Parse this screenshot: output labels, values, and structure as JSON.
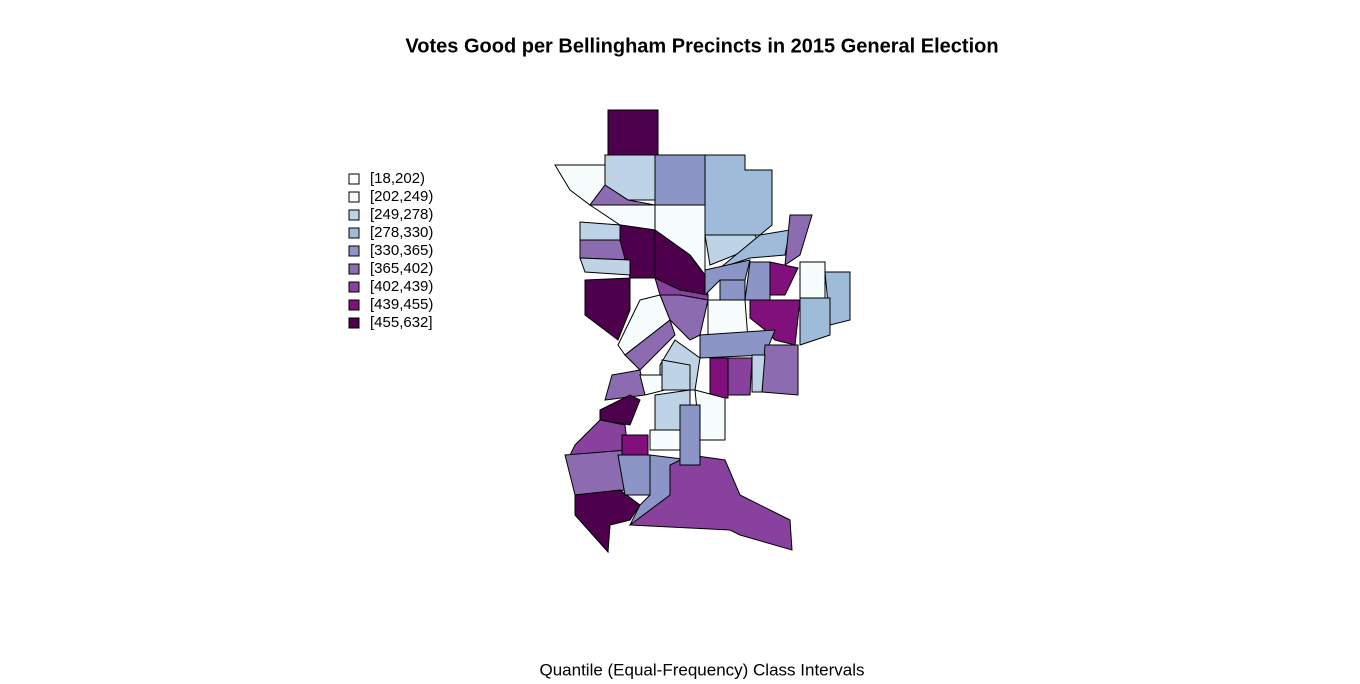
{
  "title": "Votes Good per Bellingham Precincts in 2015 General Election",
  "legend": {
    "items": [
      {
        "label": "[18,202)",
        "color": "#ffffff"
      },
      {
        "label": "[202,249)",
        "color": "#f7fcfd"
      },
      {
        "label": "[249,278)",
        "color": "#bfd3e6"
      },
      {
        "label": "[278,330)",
        "color": "#9ebcda"
      },
      {
        "label": "[330,365)",
        "color": "#8c96c6"
      },
      {
        "label": "[365,402)",
        "color": "#8c6bb1"
      },
      {
        "label": "[402,439)",
        "color": "#88419d"
      },
      {
        "label": "[439,455)",
        "color": "#810f7c"
      },
      {
        "label": "[455,632]",
        "color": "#4d004b"
      }
    ]
  },
  "caption": "Quantile (Equal-Frequency) Class Intervals"
}
